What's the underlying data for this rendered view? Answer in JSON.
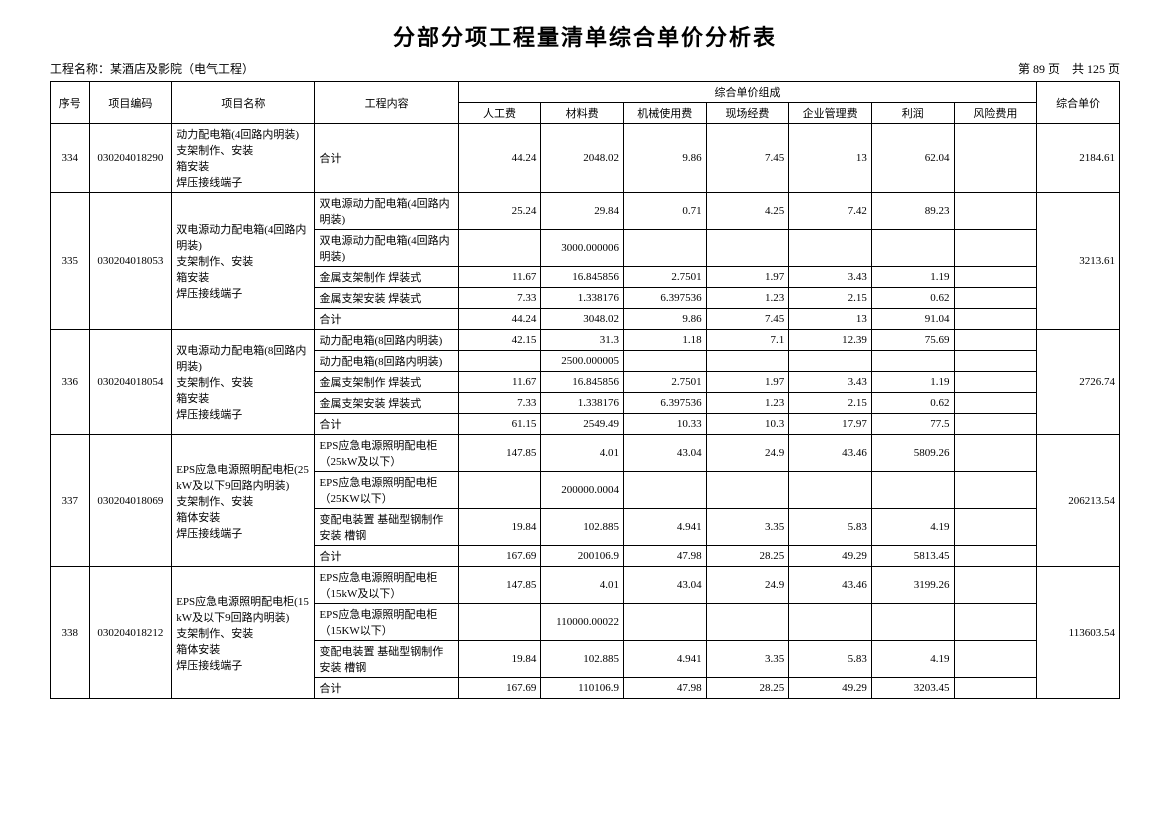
{
  "title": "分部分项工程量清单综合单价分析表",
  "project_label": "工程名称：",
  "project_name": "某酒店及影院（电气工程）",
  "page_info_prefix": "第 ",
  "page_current": "89",
  "page_info_mid": " 页　共 ",
  "page_total": "125",
  "page_info_suffix": " 页",
  "headers": {
    "seq": "序号",
    "code": "项目编码",
    "name": "项目名称",
    "content": "工程内容",
    "group": "综合单价组成",
    "labor": "人工费",
    "material": "材料费",
    "machine": "机械使用费",
    "site": "现场经费",
    "mgmt": "企业管理费",
    "profit": "利润",
    "risk": "风险费用",
    "total": "综合单价"
  },
  "rows": [
    {
      "seq": "334",
      "code": "030204018290",
      "name": "动力配电箱(4回路内明装)\n支架制作、安装\n箱安装\n焊压接线端子",
      "total": "2184.61",
      "lines": [
        {
          "content": "合计",
          "labor": "44.24",
          "material": "2048.02",
          "machine": "9.86",
          "site": "7.45",
          "mgmt": "13",
          "profit": "62.04",
          "risk": ""
        }
      ]
    },
    {
      "seq": "335",
      "code": "030204018053",
      "name": "双电源动力配电箱(4回路内明装)\n支架制作、安装\n箱安装\n焊压接线端子",
      "total": "3213.61",
      "lines": [
        {
          "content": "双电源动力配电箱(4回路内明装)",
          "labor": "25.24",
          "material": "29.84",
          "machine": "0.71",
          "site": "4.25",
          "mgmt": "7.42",
          "profit": "89.23",
          "risk": ""
        },
        {
          "content": "双电源动力配电箱(4回路内明装)",
          "labor": "",
          "material": "3000.000006",
          "machine": "",
          "site": "",
          "mgmt": "",
          "profit": "",
          "risk": ""
        },
        {
          "content": "金属支架制作 焊装式",
          "labor": "11.67",
          "material": "16.845856",
          "machine": "2.7501",
          "site": "1.97",
          "mgmt": "3.43",
          "profit": "1.19",
          "risk": ""
        },
        {
          "content": "金属支架安装 焊装式",
          "labor": "7.33",
          "material": "1.338176",
          "machine": "6.397536",
          "site": "1.23",
          "mgmt": "2.15",
          "profit": "0.62",
          "risk": ""
        },
        {
          "content": "合计",
          "labor": "44.24",
          "material": "3048.02",
          "machine": "9.86",
          "site": "7.45",
          "mgmt": "13",
          "profit": "91.04",
          "risk": ""
        }
      ]
    },
    {
      "seq": "336",
      "code": "030204018054",
      "name": "双电源动力配电箱(8回路内明装)\n支架制作、安装\n箱安装\n焊压接线端子",
      "total": "2726.74",
      "lines": [
        {
          "content": "动力配电箱(8回路内明装)",
          "labor": "42.15",
          "material": "31.3",
          "machine": "1.18",
          "site": "7.1",
          "mgmt": "12.39",
          "profit": "75.69",
          "risk": ""
        },
        {
          "content": "动力配电箱(8回路内明装)",
          "labor": "",
          "material": "2500.000005",
          "machine": "",
          "site": "",
          "mgmt": "",
          "profit": "",
          "risk": ""
        },
        {
          "content": "金属支架制作 焊装式",
          "labor": "11.67",
          "material": "16.845856",
          "machine": "2.7501",
          "site": "1.97",
          "mgmt": "3.43",
          "profit": "1.19",
          "risk": ""
        },
        {
          "content": "金属支架安装 焊装式",
          "labor": "7.33",
          "material": "1.338176",
          "machine": "6.397536",
          "site": "1.23",
          "mgmt": "2.15",
          "profit": "0.62",
          "risk": ""
        },
        {
          "content": "合计",
          "labor": "61.15",
          "material": "2549.49",
          "machine": "10.33",
          "site": "10.3",
          "mgmt": "17.97",
          "profit": "77.5",
          "risk": ""
        }
      ]
    },
    {
      "seq": "337",
      "code": "030204018069",
      "name": "EPS应急电源照明配电柜(25kW及以下9回路内明装)\n支架制作、安装\n箱体安装\n焊压接线端子",
      "total": "206213.54",
      "lines": [
        {
          "content": "EPS应急电源照明配电柜（25kW及以下）",
          "labor": "147.85",
          "material": "4.01",
          "machine": "43.04",
          "site": "24.9",
          "mgmt": "43.46",
          "profit": "5809.26",
          "risk": ""
        },
        {
          "content": "EPS应急电源照明配电柜（25KW以下）",
          "labor": "",
          "material": "200000.0004",
          "machine": "",
          "site": "",
          "mgmt": "",
          "profit": "",
          "risk": ""
        },
        {
          "content": "变配电装置 基础型钢制作安装 槽钢",
          "labor": "19.84",
          "material": "102.885",
          "machine": "4.941",
          "site": "3.35",
          "mgmt": "5.83",
          "profit": "4.19",
          "risk": ""
        },
        {
          "content": "合计",
          "labor": "167.69",
          "material": "200106.9",
          "machine": "47.98",
          "site": "28.25",
          "mgmt": "49.29",
          "profit": "5813.45",
          "risk": ""
        }
      ]
    },
    {
      "seq": "338",
      "code": "030204018212",
      "name": "EPS应急电源照明配电柜(15kW及以下9回路内明装)\n支架制作、安装\n箱体安装\n焊压接线端子",
      "total": "113603.54",
      "lines": [
        {
          "content": "EPS应急电源照明配电柜（15kW及以下）",
          "labor": "147.85",
          "material": "4.01",
          "machine": "43.04",
          "site": "24.9",
          "mgmt": "43.46",
          "profit": "3199.26",
          "risk": ""
        },
        {
          "content": "EPS应急电源照明配电柜（15KW以下）",
          "labor": "",
          "material": "110000.00022",
          "machine": "",
          "site": "",
          "mgmt": "",
          "profit": "",
          "risk": ""
        },
        {
          "content": "变配电装置 基础型钢制作安装 槽钢",
          "labor": "19.84",
          "material": "102.885",
          "machine": "4.941",
          "site": "3.35",
          "mgmt": "5.83",
          "profit": "4.19",
          "risk": ""
        },
        {
          "content": "合计",
          "labor": "167.69",
          "material": "110106.9",
          "machine": "47.98",
          "site": "28.25",
          "mgmt": "49.29",
          "profit": "3203.45",
          "risk": ""
        }
      ]
    }
  ]
}
